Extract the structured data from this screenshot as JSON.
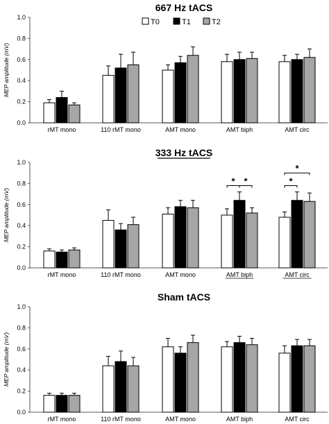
{
  "legend": [
    {
      "label": "T0",
      "color": "#ffffff"
    },
    {
      "label": "T1",
      "color": "#000000"
    },
    {
      "label": "T2",
      "color": "#a6a6a6"
    }
  ],
  "chart_data": [
    {
      "type": "bar",
      "title": "667 Hz tACS",
      "title_underline": false,
      "ylabel": "MEP amplitude (mV)",
      "ylim": [
        0,
        1.0
      ],
      "yticks": [
        "0.0",
        "0.2",
        "0.4",
        "0.6",
        "0.8",
        "1.0"
      ],
      "categories": [
        "rMT mono",
        "110 rMT mono",
        "AMT mono",
        "AMT biph",
        "AMT circ"
      ],
      "underlined_categories": [],
      "series": [
        {
          "name": "T0",
          "values": [
            0.19,
            0.45,
            0.5,
            0.58,
            0.58
          ],
          "errors": [
            0.03,
            0.09,
            0.05,
            0.07,
            0.06
          ]
        },
        {
          "name": "T1",
          "values": [
            0.24,
            0.52,
            0.57,
            0.6,
            0.6
          ],
          "errors": [
            0.06,
            0.13,
            0.06,
            0.07,
            0.05
          ]
        },
        {
          "name": "T2",
          "values": [
            0.17,
            0.55,
            0.64,
            0.61,
            0.62
          ],
          "errors": [
            0.02,
            0.12,
            0.08,
            0.06,
            0.08
          ]
        }
      ],
      "significance": []
    },
    {
      "type": "bar",
      "title": "333 Hz tACS",
      "title_underline": true,
      "ylabel": "MEP amplitude (mV)",
      "ylim": [
        0,
        1.0
      ],
      "yticks": [
        "0.0",
        "0.2",
        "0.4",
        "0.6",
        "0.8",
        "1.0"
      ],
      "categories": [
        "rMT mono",
        "110 rMT mono",
        "AMT mono",
        "AMT biph",
        "AMT circ"
      ],
      "underlined_categories": [
        "AMT biph",
        "AMT circ"
      ],
      "series": [
        {
          "name": "T0",
          "values": [
            0.16,
            0.45,
            0.51,
            0.5,
            0.48
          ],
          "errors": [
            0.02,
            0.1,
            0.06,
            0.06,
            0.05
          ]
        },
        {
          "name": "T1",
          "values": [
            0.15,
            0.36,
            0.58,
            0.64,
            0.64
          ],
          "errors": [
            0.02,
            0.06,
            0.06,
            0.08,
            0.08
          ]
        },
        {
          "name": "T2",
          "values": [
            0.17,
            0.41,
            0.57,
            0.52,
            0.63
          ],
          "errors": [
            0.02,
            0.07,
            0.07,
            0.05,
            0.08
          ]
        }
      ],
      "significance": [
        {
          "category": 3,
          "from": 0,
          "to": 1,
          "level": 0,
          "label": "*"
        },
        {
          "category": 3,
          "from": 1,
          "to": 2,
          "level": 0,
          "label": "*"
        },
        {
          "category": 4,
          "from": 0,
          "to": 1,
          "level": 0,
          "label": "*"
        },
        {
          "category": 4,
          "from": 0,
          "to": 2,
          "level": 1,
          "label": "*"
        }
      ]
    },
    {
      "type": "bar",
      "title": "Sham tACS",
      "title_underline": false,
      "ylabel": "MEP amplitude (mV)",
      "ylim": [
        0,
        1.0
      ],
      "yticks": [
        "0.0",
        "0.2",
        "0.4",
        "0.6",
        "0.8",
        "1.0"
      ],
      "categories": [
        "rMT mono",
        "110 rMT mono",
        "AMT mono",
        "AMT biph",
        "AMT circ"
      ],
      "underlined_categories": [],
      "series": [
        {
          "name": "T0",
          "values": [
            0.16,
            0.44,
            0.62,
            0.62,
            0.56
          ],
          "errors": [
            0.02,
            0.09,
            0.08,
            0.05,
            0.07
          ]
        },
        {
          "name": "T1",
          "values": [
            0.16,
            0.48,
            0.56,
            0.66,
            0.63
          ],
          "errors": [
            0.02,
            0.1,
            0.06,
            0.06,
            0.06
          ]
        },
        {
          "name": "T2",
          "values": [
            0.16,
            0.44,
            0.66,
            0.64,
            0.63
          ],
          "errors": [
            0.02,
            0.08,
            0.07,
            0.06,
            0.06
          ]
        }
      ],
      "significance": []
    }
  ]
}
